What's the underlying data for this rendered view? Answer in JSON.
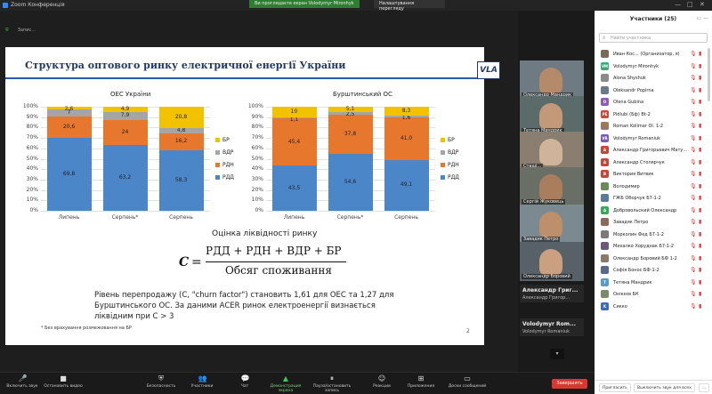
{
  "window": {
    "title": "Zoom Конференція",
    "banner": "Ви проглядаєте екран Volodymyr Mironhyk",
    "view_options": "Налаштування перегляду"
  },
  "top_controls": [
    "",
    "Запис...",
    ""
  ],
  "slide": {
    "title": "Структура оптового ринку електричної енергії України",
    "logo": "VLA",
    "chart_left_title": "ОЕС України",
    "chart_right_title": "Бурштинський ОС",
    "formula_title": "Оцінка ліквідності ринку",
    "formula_c": "C",
    "formula_eq": "=",
    "formula_num": "РДД + РДН + ВДР + БР",
    "formula_den": "Обсяг споживання",
    "paragraph": "Рівень перепродажу (C, \"churn factor\") становить 1,61 для ОЕС та 1,27 для Бурштинського ОС. За даними ACER ринок електроенергії визнається ліквідним при C > 3",
    "footnote": "* Без врахування розмежовання на БР",
    "page": "2"
  },
  "chart_data": [
    {
      "type": "bar",
      "title": "ОЕС України",
      "categories": [
        "Липень",
        "Серпень*",
        "Серпень"
      ],
      "ylim": [
        0,
        100
      ],
      "yticks": [
        "0%",
        "10%",
        "20%",
        "30%",
        "40%",
        "50%",
        "60%",
        "70%",
        "80%",
        "90%",
        "100%"
      ],
      "stacked": true,
      "series": [
        {
          "name": "РДД",
          "color": "#4a86c8",
          "values": [
            69.8,
            63.2,
            58.3
          ],
          "labels": [
            "69,8",
            "63,2",
            "58,3"
          ]
        },
        {
          "name": "РДН",
          "color": "#e8772e",
          "values": [
            20.6,
            24,
            16.2
          ],
          "labels": [
            "20,6",
            "24",
            "16,2"
          ]
        },
        {
          "name": "ВДР",
          "color": "#a5a5a5",
          "values": [
            7,
            7.9,
            4.8
          ],
          "labels": [
            "7",
            "7,9",
            "4,8"
          ]
        },
        {
          "name": "БР",
          "color": "#f2c200",
          "values": [
            2.6,
            4.9,
            20.8
          ],
          "labels": [
            "2,6",
            "4,9",
            "20,8"
          ]
        }
      ]
    },
    {
      "type": "bar",
      "title": "Бурштинський ОС",
      "categories": [
        "Липень",
        "Серпень*",
        "Серпень"
      ],
      "ylim": [
        0,
        100
      ],
      "yticks": [
        "0%",
        "10%",
        "20%",
        "30%",
        "40%",
        "50%",
        "60%",
        "70%",
        "80%",
        "90%",
        "100%"
      ],
      "stacked": true,
      "series": [
        {
          "name": "РДД",
          "color": "#4a86c8",
          "values": [
            43.5,
            54.6,
            49.1
          ],
          "labels": [
            "43,5",
            "54,6",
            "49,1"
          ]
        },
        {
          "name": "РДН",
          "color": "#e8772e",
          "values": [
            45.4,
            37.8,
            41.0
          ],
          "labels": [
            "45,4",
            "37,8",
            "41,0"
          ]
        },
        {
          "name": "ВДР",
          "color": "#a5a5a5",
          "values": [
            1.1,
            2.5,
            1.6
          ],
          "labels": [
            "1,1",
            "2,5",
            "1,6"
          ]
        },
        {
          "name": "БР",
          "color": "#f2c200",
          "values": [
            10,
            5.1,
            8.3
          ],
          "labels": [
            "10",
            "5,1",
            "8,3"
          ]
        }
      ]
    }
  ],
  "video_tiles": [
    {
      "name": "Олександр Мандрик",
      "skin": "#b48a6a",
      "bg": "#6f7b82"
    },
    {
      "name": "Тетяна Мандрик",
      "skin": "#c29a7a",
      "bg": "#5b6b6a"
    },
    {
      "name": "Сташі...",
      "skin": "#cfb39b",
      "bg": "#8a7e70"
    },
    {
      "name": "Сергій Жуковець",
      "skin": "#a97e5f",
      "bg": "#6a6f66"
    },
    {
      "name": "Завадяк Петро",
      "skin": "#bd8f6a",
      "bg": "#7a8a90"
    },
    {
      "name": "Олександр Боровий",
      "skin": "#caa080",
      "bg": "#586068"
    }
  ],
  "name_tiles": [
    {
      "name": "Александр Григ...",
      "sub": "Александр Григор..."
    },
    {
      "name": "Volodymyr Rom...",
      "sub": "Volodymyr Romaniuk"
    }
  ],
  "toolbar": [
    {
      "label": "Включить звук",
      "icon": "🎤",
      "kind": "red"
    },
    {
      "label": "Остановить видео",
      "icon": "■",
      "kind": ""
    },
    {
      "label": "Безопасность",
      "icon": "⛨",
      "kind": ""
    },
    {
      "label": "Участники",
      "icon": "👥",
      "kind": ""
    },
    {
      "label": "Чат",
      "icon": "💬",
      "kind": ""
    },
    {
      "label": "Демонстрация экрана",
      "icon": "▲",
      "kind": "green"
    },
    {
      "label": "Пауза/остановить запись",
      "icon": "⏸",
      "kind": ""
    },
    {
      "label": "Реакции",
      "icon": "☺",
      "kind": ""
    },
    {
      "label": "Приложения",
      "icon": "⊞",
      "kind": ""
    },
    {
      "label": "Доски сообщений",
      "icon": "▭",
      "kind": ""
    }
  ],
  "end_button": "Завершить",
  "participants": {
    "title": "Участники (25)",
    "search_placeholder": "Найти участника",
    "list": [
      {
        "name": "Иван Кос... (Организатор, я)",
        "initials": "",
        "color": "#7a6a5a"
      },
      {
        "name": "Volodymyr Mironhyk",
        "initials": "VM",
        "color": "#3aa87a"
      },
      {
        "name": "Alona Shyshuk",
        "initials": "",
        "color": "#8a8a8a"
      },
      {
        "name": "Oleksandr Popirna",
        "initials": "",
        "color": "#6a7a8a"
      },
      {
        "name": "Olena Gubina",
        "initials": "O",
        "color": "#8e5ab8"
      },
      {
        "name": "Pidlubi (Бф) Bt-2",
        "initials": "PE",
        "color": "#c84a3a"
      },
      {
        "name": "Roman Kolimar Ol. 1-2",
        "initials": "",
        "color": "#9a7a5a"
      },
      {
        "name": "Volodymyr Romaniuk",
        "initials": "VR",
        "color": "#7a5ab8"
      },
      {
        "name": "Александр Григорьевич Мату...",
        "initials": "A",
        "color": "#c8453a"
      },
      {
        "name": "Александр Столярчук",
        "initials": "A",
        "color": "#c8453a"
      },
      {
        "name": "Виктория Витвик",
        "initials": "B",
        "color": "#c8453a"
      },
      {
        "name": "Володимир",
        "initials": "",
        "color": "#6a8a5a"
      },
      {
        "name": "ГЖБ Оборчук Б7-1-2",
        "initials": "",
        "color": "#5a7a9a"
      },
      {
        "name": "Добровольский Олександр",
        "initials": "A",
        "color": "#3aa85a"
      },
      {
        "name": "Завадяк Петро",
        "initials": "",
        "color": "#8a6a5a"
      },
      {
        "name": "Морколин Фед Б7-1-2",
        "initials": "",
        "color": "#7a7a7a"
      },
      {
        "name": "Михалко Хоруднак Б7-1-2",
        "initials": "",
        "color": "#6a5a7a"
      },
      {
        "name": "Олександр Боровий БФ 1-2",
        "initials": "",
        "color": "#8a7a6a"
      },
      {
        "name": "Софія Бонос БФ-1-2",
        "initials": "",
        "color": "#5a6a8a"
      },
      {
        "name": "Тетяна Мандрик",
        "initials": "T",
        "color": "#5a9ac8"
      },
      {
        "name": "Онікєєв БК",
        "initials": "",
        "color": "#7a8a6a"
      },
      {
        "name": "Сикко",
        "initials": "K",
        "color": "#3a6ab8"
      }
    ],
    "invite": "Пригласить",
    "mute_all": "Выключить звук для всех",
    "more": "..."
  }
}
